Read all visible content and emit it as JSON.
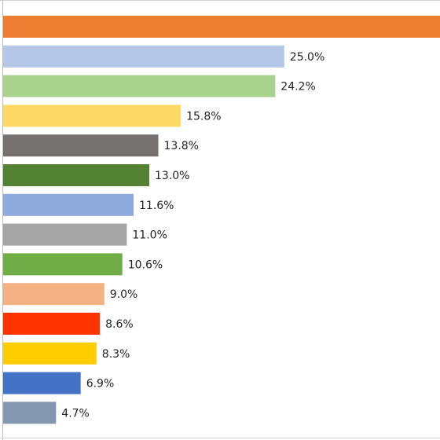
{
  "chart_data": {
    "type": "bar",
    "orientation": "horizontal",
    "values": [
      39.0,
      25.0,
      24.2,
      15.8,
      13.8,
      13.0,
      11.6,
      11.0,
      10.6,
      9.0,
      8.6,
      8.3,
      6.9,
      4.7
    ],
    "data_labels": [
      "",
      "25.0%",
      "24.2%",
      "15.8%",
      "13.8%",
      "13.0%",
      "11.6%",
      "11.0%",
      "10.6%",
      "9.0%",
      "8.6%",
      "8.3%",
      "6.9%",
      "4.7%"
    ],
    "colors": [
      "#ED7D31",
      "#B4C7E7",
      "#A9D18E",
      "#FFD966",
      "#767171",
      "#548235",
      "#8FAADC",
      "#A5A5A5",
      "#70AD47",
      "#F4B183",
      "#FF3300",
      "#FFCC00",
      "#4472C4",
      "#8497B0"
    ],
    "xlim": [
      0,
      39.0
    ],
    "grid": false,
    "legend": "none"
  }
}
